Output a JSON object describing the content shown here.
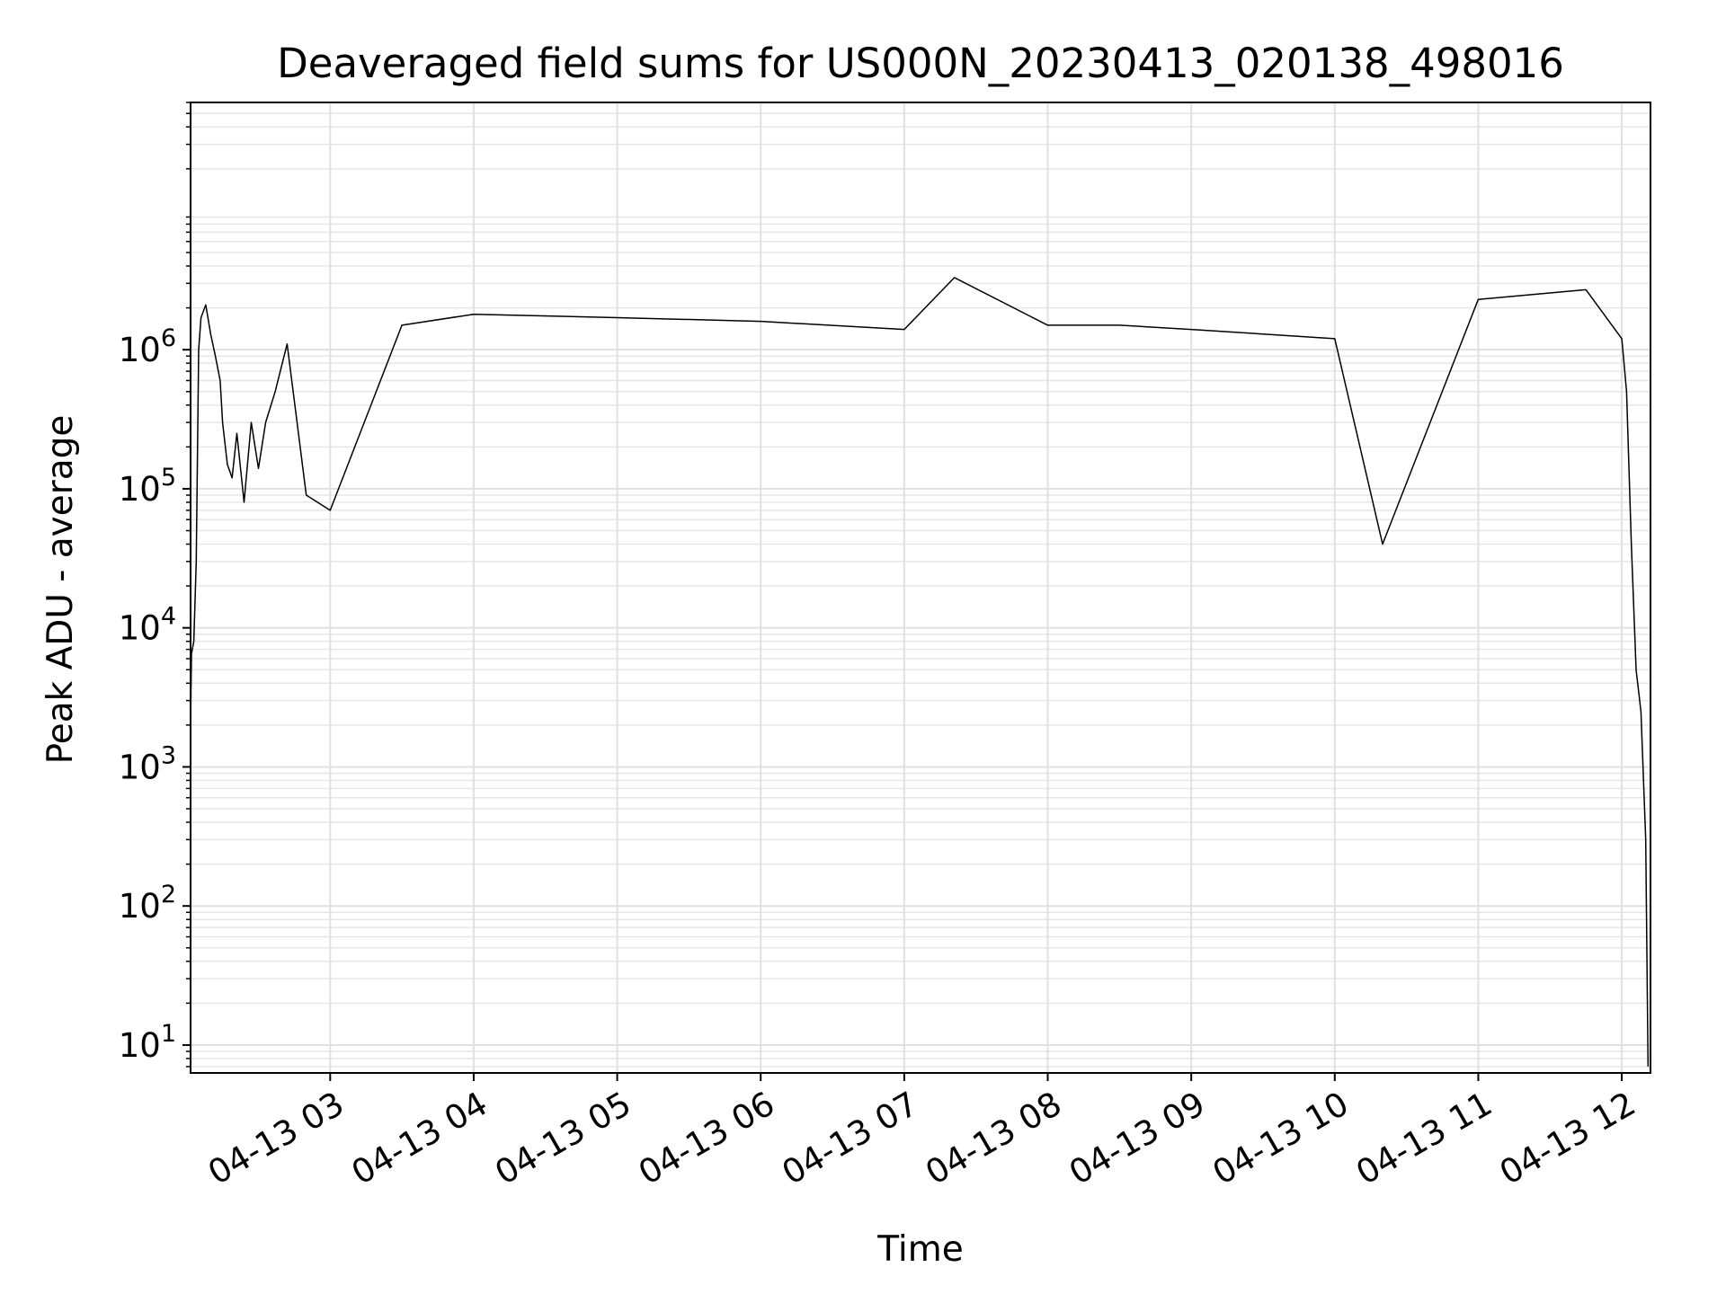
{
  "chart_data": {
    "type": "line",
    "title": "Deaveraged field sums for US000N_20230413_020138_498016",
    "xlabel": "Time",
    "ylabel": "Peak ADU - average",
    "yscale": "log",
    "grid": true,
    "legend": "none",
    "line_color": "#000000",
    "xlim": [
      "2023-04-13 02:01:38",
      "2023-04-13 12:12:00"
    ],
    "ylim": [
      6.3,
      60000000
    ],
    "x_ticks": [
      {
        "value": "2023-04-13 03:00",
        "label": "04-13 03"
      },
      {
        "value": "2023-04-13 04:00",
        "label": "04-13 04"
      },
      {
        "value": "2023-04-13 05:00",
        "label": "04-13 05"
      },
      {
        "value": "2023-04-13 06:00",
        "label": "04-13 06"
      },
      {
        "value": "2023-04-13 07:00",
        "label": "04-13 07"
      },
      {
        "value": "2023-04-13 08:00",
        "label": "04-13 08"
      },
      {
        "value": "2023-04-13 09:00",
        "label": "04-13 09"
      },
      {
        "value": "2023-04-13 10:00",
        "label": "04-13 10"
      },
      {
        "value": "2023-04-13 11:00",
        "label": "04-13 11"
      },
      {
        "value": "2023-04-13 12:00",
        "label": "04-13 12"
      }
    ],
    "y_ticks": [
      {
        "value": 10,
        "base": "10",
        "exp": "1"
      },
      {
        "value": 100,
        "base": "10",
        "exp": "2"
      },
      {
        "value": 1000,
        "base": "10",
        "exp": "3"
      },
      {
        "value": 10000,
        "base": "10",
        "exp": "4"
      },
      {
        "value": 100000,
        "base": "10",
        "exp": "5"
      },
      {
        "value": 1000000,
        "base": "10",
        "exp": "6"
      }
    ],
    "series": [
      {
        "x": [
          "2023-04-13 02:01:38",
          "2023-04-13 02:02",
          "2023-04-13 02:03",
          "2023-04-13 02:04",
          "2023-04-13 02:05",
          "2023-04-13 02:06",
          "2023-04-13 02:08",
          "2023-04-13 02:10",
          "2023-04-13 02:12",
          "2023-04-13 02:14",
          "2023-04-13 02:15",
          "2023-04-13 02:17",
          "2023-04-13 02:19",
          "2023-04-13 02:21",
          "2023-04-13 02:24",
          "2023-04-13 02:27",
          "2023-04-13 02:30",
          "2023-04-13 02:33",
          "2023-04-13 02:37",
          "2023-04-13 02:42",
          "2023-04-13 02:50",
          "2023-04-13 03:00",
          "2023-04-13 03:30",
          "2023-04-13 04:00",
          "2023-04-13 05:00",
          "2023-04-13 06:00",
          "2023-04-13 07:00",
          "2023-04-13 07:21",
          "2023-04-13 08:00",
          "2023-04-13 08:30",
          "2023-04-13 09:00",
          "2023-04-13 10:00",
          "2023-04-13 10:20",
          "2023-04-13 11:00",
          "2023-04-13 11:45",
          "2023-04-13 12:00",
          "2023-04-13 12:02",
          "2023-04-13 12:04",
          "2023-04-13 12:06",
          "2023-04-13 12:08",
          "2023-04-13 12:10",
          "2023-04-13 12:11"
        ],
        "y": [
          2000,
          6500,
          8000,
          30000,
          1000000,
          1700000,
          2100000,
          1300000,
          900000,
          600000,
          300000,
          150000,
          120000,
          250000,
          80000,
          300000,
          140000,
          300000,
          500000,
          1100000,
          90000,
          70000,
          1500000,
          1800000,
          1700000,
          1600000,
          1400000,
          3300000,
          1500000,
          1500000,
          1400000,
          1200000,
          40000,
          2300000,
          2700000,
          1200000,
          500000,
          40000,
          5000,
          2500,
          300,
          7
        ]
      }
    ]
  }
}
